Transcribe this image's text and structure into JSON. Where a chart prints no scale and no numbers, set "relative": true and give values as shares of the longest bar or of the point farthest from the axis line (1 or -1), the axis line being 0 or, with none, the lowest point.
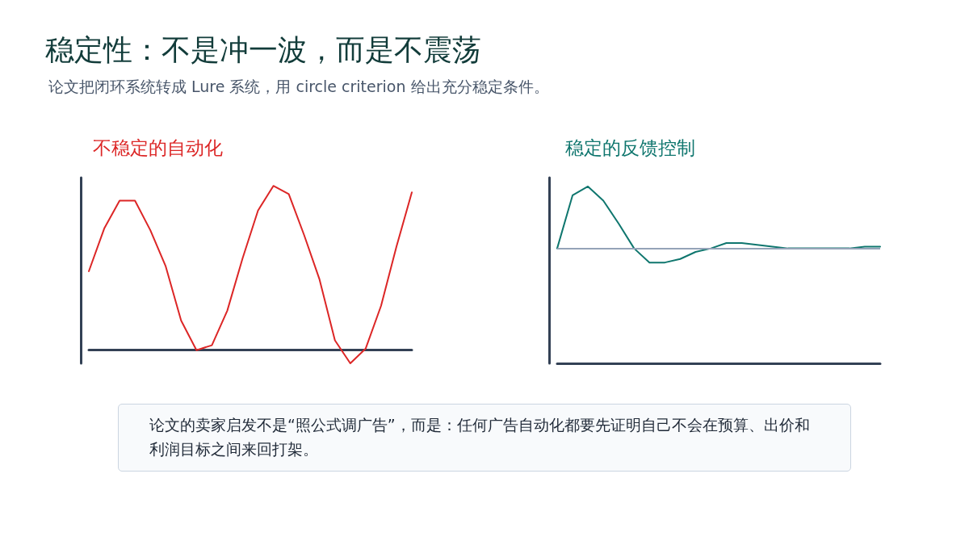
{
  "chart_data": [
    {
      "type": "other",
      "title": "稳定性：不是冲一波，而是不震荡",
      "subtitle": "论文把闭环系统转成 Lure 系统，用 circle criterion 给出充分稳定条件。",
      "annotations": [
        "论文的卖家启发不是“照公式调广告”，而是：任何广告自动化都要先证明自己不会在预算、出价和利润目标之间来回打架。"
      ]
    },
    {
      "type": "line",
      "title": "不稳定的自动化",
      "relative": true,
      "categories": [
        null,
        null,
        null,
        null,
        null,
        null,
        null,
        null,
        null,
        null,
        null,
        null,
        null,
        null,
        null,
        null,
        null,
        null,
        null,
        null,
        null,
        null
      ],
      "series": [
        {
          "color": "#dc2626",
          "values": [
            0.48,
            0.74,
            0.91,
            0.91,
            0.73,
            0.51,
            0.18,
            0.0,
            0.03,
            0.24,
            0.56,
            0.85,
            1,
            0.95,
            0.7,
            0.43,
            0.06,
            -0.08,
            0.01,
            0.27,
            0.63,
            0.96
          ]
        }
      ],
      "grid": false,
      "marker": "none"
    },
    {
      "type": "line",
      "title": "稳定的反馈控制",
      "relative": true,
      "categories": [
        null,
        null,
        null,
        null,
        null,
        null,
        null,
        null,
        null,
        null,
        null,
        null,
        null,
        null,
        null,
        null,
        null,
        null,
        null,
        null,
        null,
        null
      ],
      "series": [
        {
          "color": "#0f766e",
          "values": [
            0.65,
            0.95,
            1,
            0.92,
            0.79,
            0.65,
            0.57,
            0.57,
            0.59,
            0.63,
            0.65,
            0.68,
            0.68,
            0.67,
            0.66,
            0.65,
            0.65,
            0.65,
            0.65,
            0.65,
            0.66,
            0.66
          ]
        }
      ],
      "ref_lines": [
        {
          "axis": "y",
          "value": 0.65,
          "color": "#94a3b8"
        }
      ],
      "grid": false,
      "marker": "none"
    }
  ]
}
